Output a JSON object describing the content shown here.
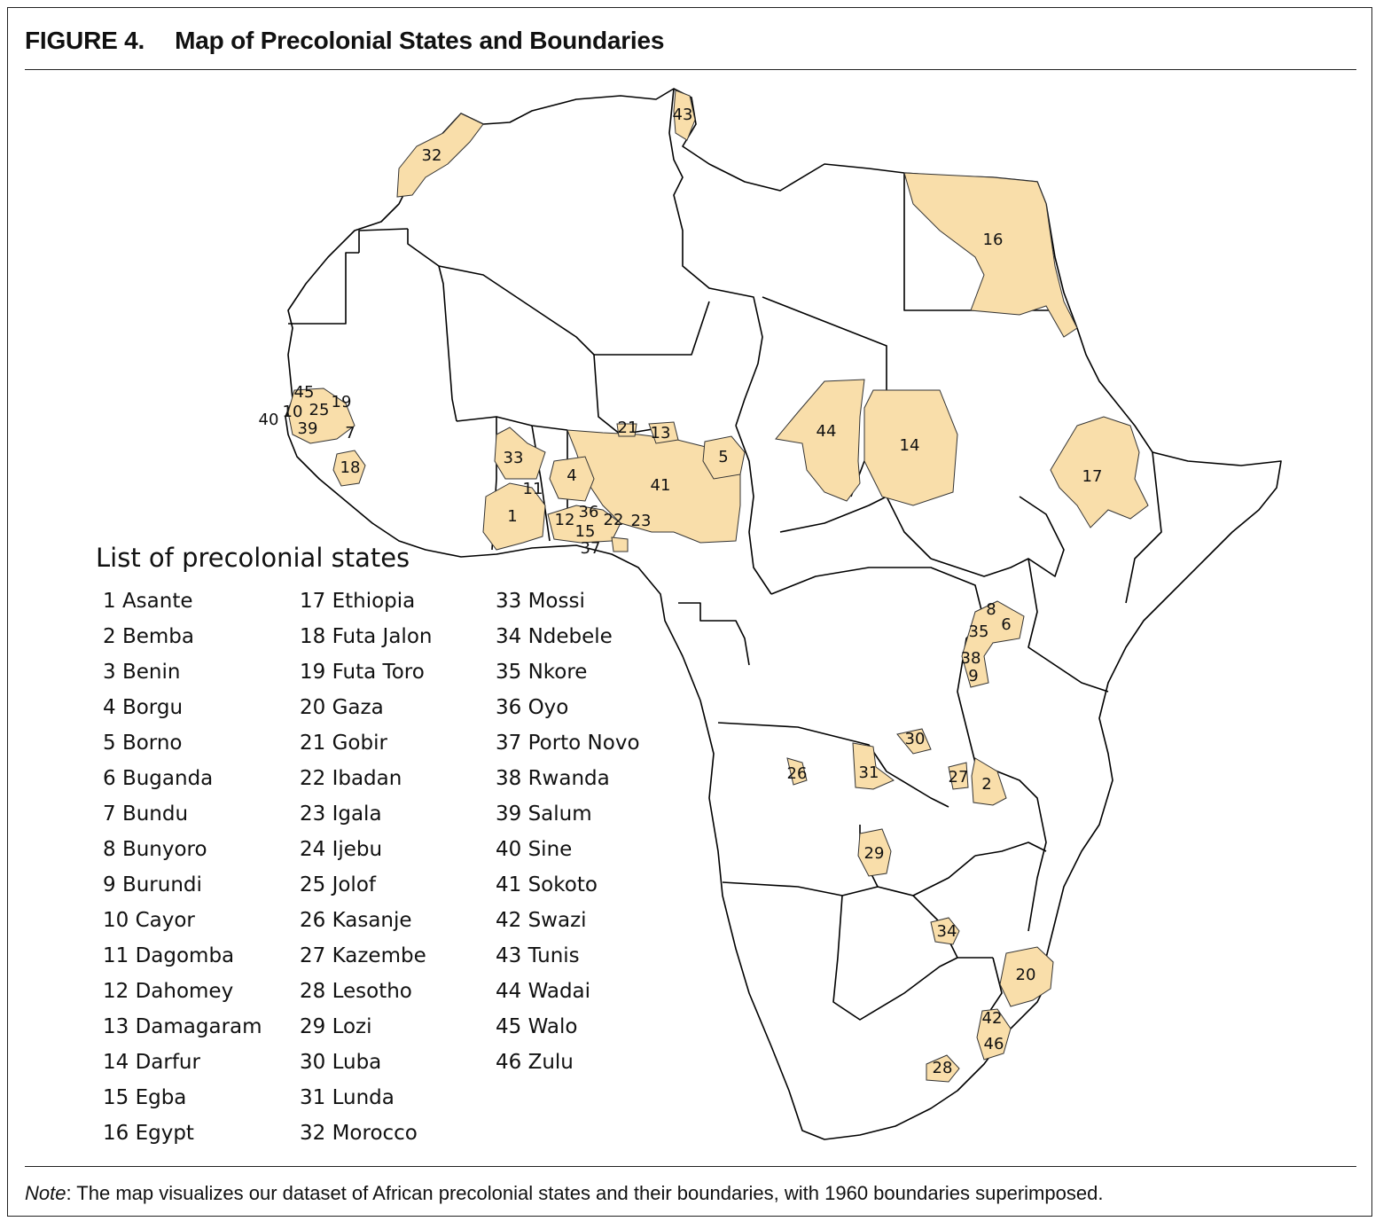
{
  "figure": {
    "number": "FIGURE 4.",
    "title": "Map of Precolonial States and Boundaries"
  },
  "legend": {
    "title": "List of precolonial states",
    "states": [
      "1 Asante",
      "2 Bemba",
      "3 Benin",
      "4 Borgu",
      "5 Borno",
      "6 Buganda",
      "7 Bundu",
      "8 Bunyoro",
      "9 Burundi",
      "10 Cayor",
      "11 Dagomba",
      "12 Dahomey",
      "13 Damagaram",
      "14 Darfur",
      "15 Egba",
      "16 Egypt",
      "17 Ethiopia",
      "18 Futa Jalon",
      "19 Futa Toro",
      "20 Gaza",
      "21 Gobir",
      "22 Ibadan",
      "23 Igala",
      "24 Ijebu",
      "25 Jolof",
      "26 Kasanje",
      "27 Kazembe",
      "28 Lesotho",
      "29 Lozi",
      "30 Luba",
      "31 Lunda",
      "32 Morocco",
      "33 Mossi",
      "34 Ndebele",
      "35 Nkore",
      "36 Oyo",
      "37 Porto Novo",
      "38 Rwanda",
      "39 Salum",
      "40 Sine",
      "41 Sokoto",
      "42 Swazi",
      "43 Tunis",
      "44 Wadai",
      "45 Walo",
      "46 Zulu"
    ]
  },
  "map_labels": [
    "1",
    "2",
    "4",
    "5",
    "6",
    "7",
    "8",
    "9",
    "10",
    "11",
    "12",
    "13",
    "14",
    "15",
    "16",
    "17",
    "18",
    "19",
    "20",
    "21",
    "22",
    "23",
    "25",
    "26",
    "27",
    "28",
    "29",
    "30",
    "31",
    "32",
    "33",
    "34",
    "35",
    "36",
    "37",
    "38",
    "39",
    "40",
    "41",
    "42",
    "43",
    "44",
    "45",
    "46"
  ],
  "colors": {
    "state_fill": "#f9deaa",
    "land_fill": "#ffffff",
    "border_stroke": "#000000"
  },
  "note": {
    "label": "Note",
    "text": ": The map visualizes our dataset of African precolonial states and their boundaries, with 1960 boundaries superimposed."
  }
}
